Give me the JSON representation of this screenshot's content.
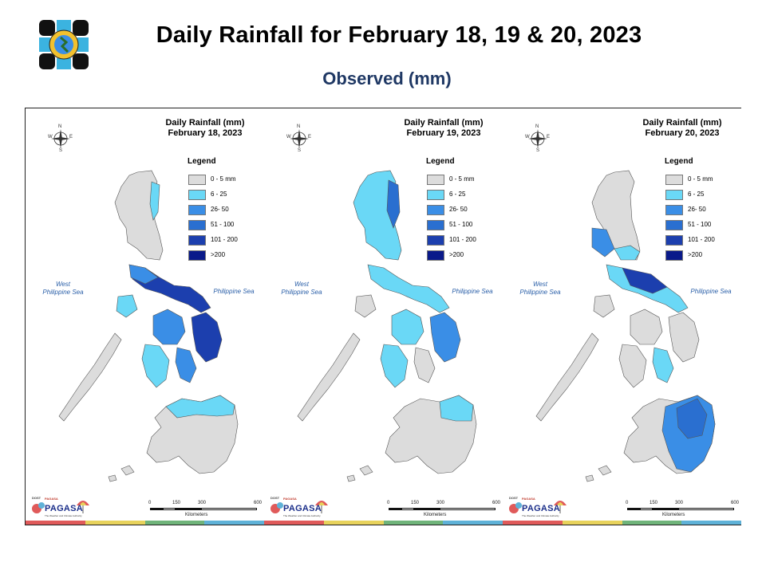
{
  "header": {
    "title": "Daily Rainfall for February 18, 19 & 20, 2023",
    "subtitle": "Observed (mm)"
  },
  "legend": {
    "title": "Legend",
    "classes": [
      {
        "label": "0 - 5 mm",
        "color": "#dcdcdc"
      },
      {
        "label": "6 - 25",
        "color": "#6ad8f6"
      },
      {
        "label": "26- 50",
        "color": "#3a8ee6"
      },
      {
        "label": "51 - 100",
        "color": "#2a6fd0"
      },
      {
        "label": "101 - 200",
        "color": "#1c3fae"
      },
      {
        "label": ">200",
        "color": "#0a1a8a"
      }
    ]
  },
  "sea_labels": {
    "west": "West\nPhilippine Sea",
    "east": "Philippine Sea"
  },
  "compass": {
    "n": "N",
    "s": "S",
    "e": "E",
    "w": "W"
  },
  "scale_bar": {
    "ticks": [
      "0",
      "150",
      "300",
      "600"
    ],
    "unit": "Kilometers"
  },
  "branding": {
    "dost": "DOST",
    "psych": "PAGASA",
    "name": "PAGASA",
    "tagline": "The Weather and Climate Authority",
    "strip_colors": [
      "#e05a5a",
      "#e8d35c",
      "#6fb47a",
      "#5fb2d8"
    ]
  },
  "panels": [
    {
      "title": "Daily Rainfall (mm)",
      "date": "February 18, 2023"
    },
    {
      "title": "Daily Rainfall (mm)",
      "date": "February 19, 2023"
    },
    {
      "title": "Daily Rainfall (mm)",
      "date": "February 20, 2023"
    }
  ]
}
